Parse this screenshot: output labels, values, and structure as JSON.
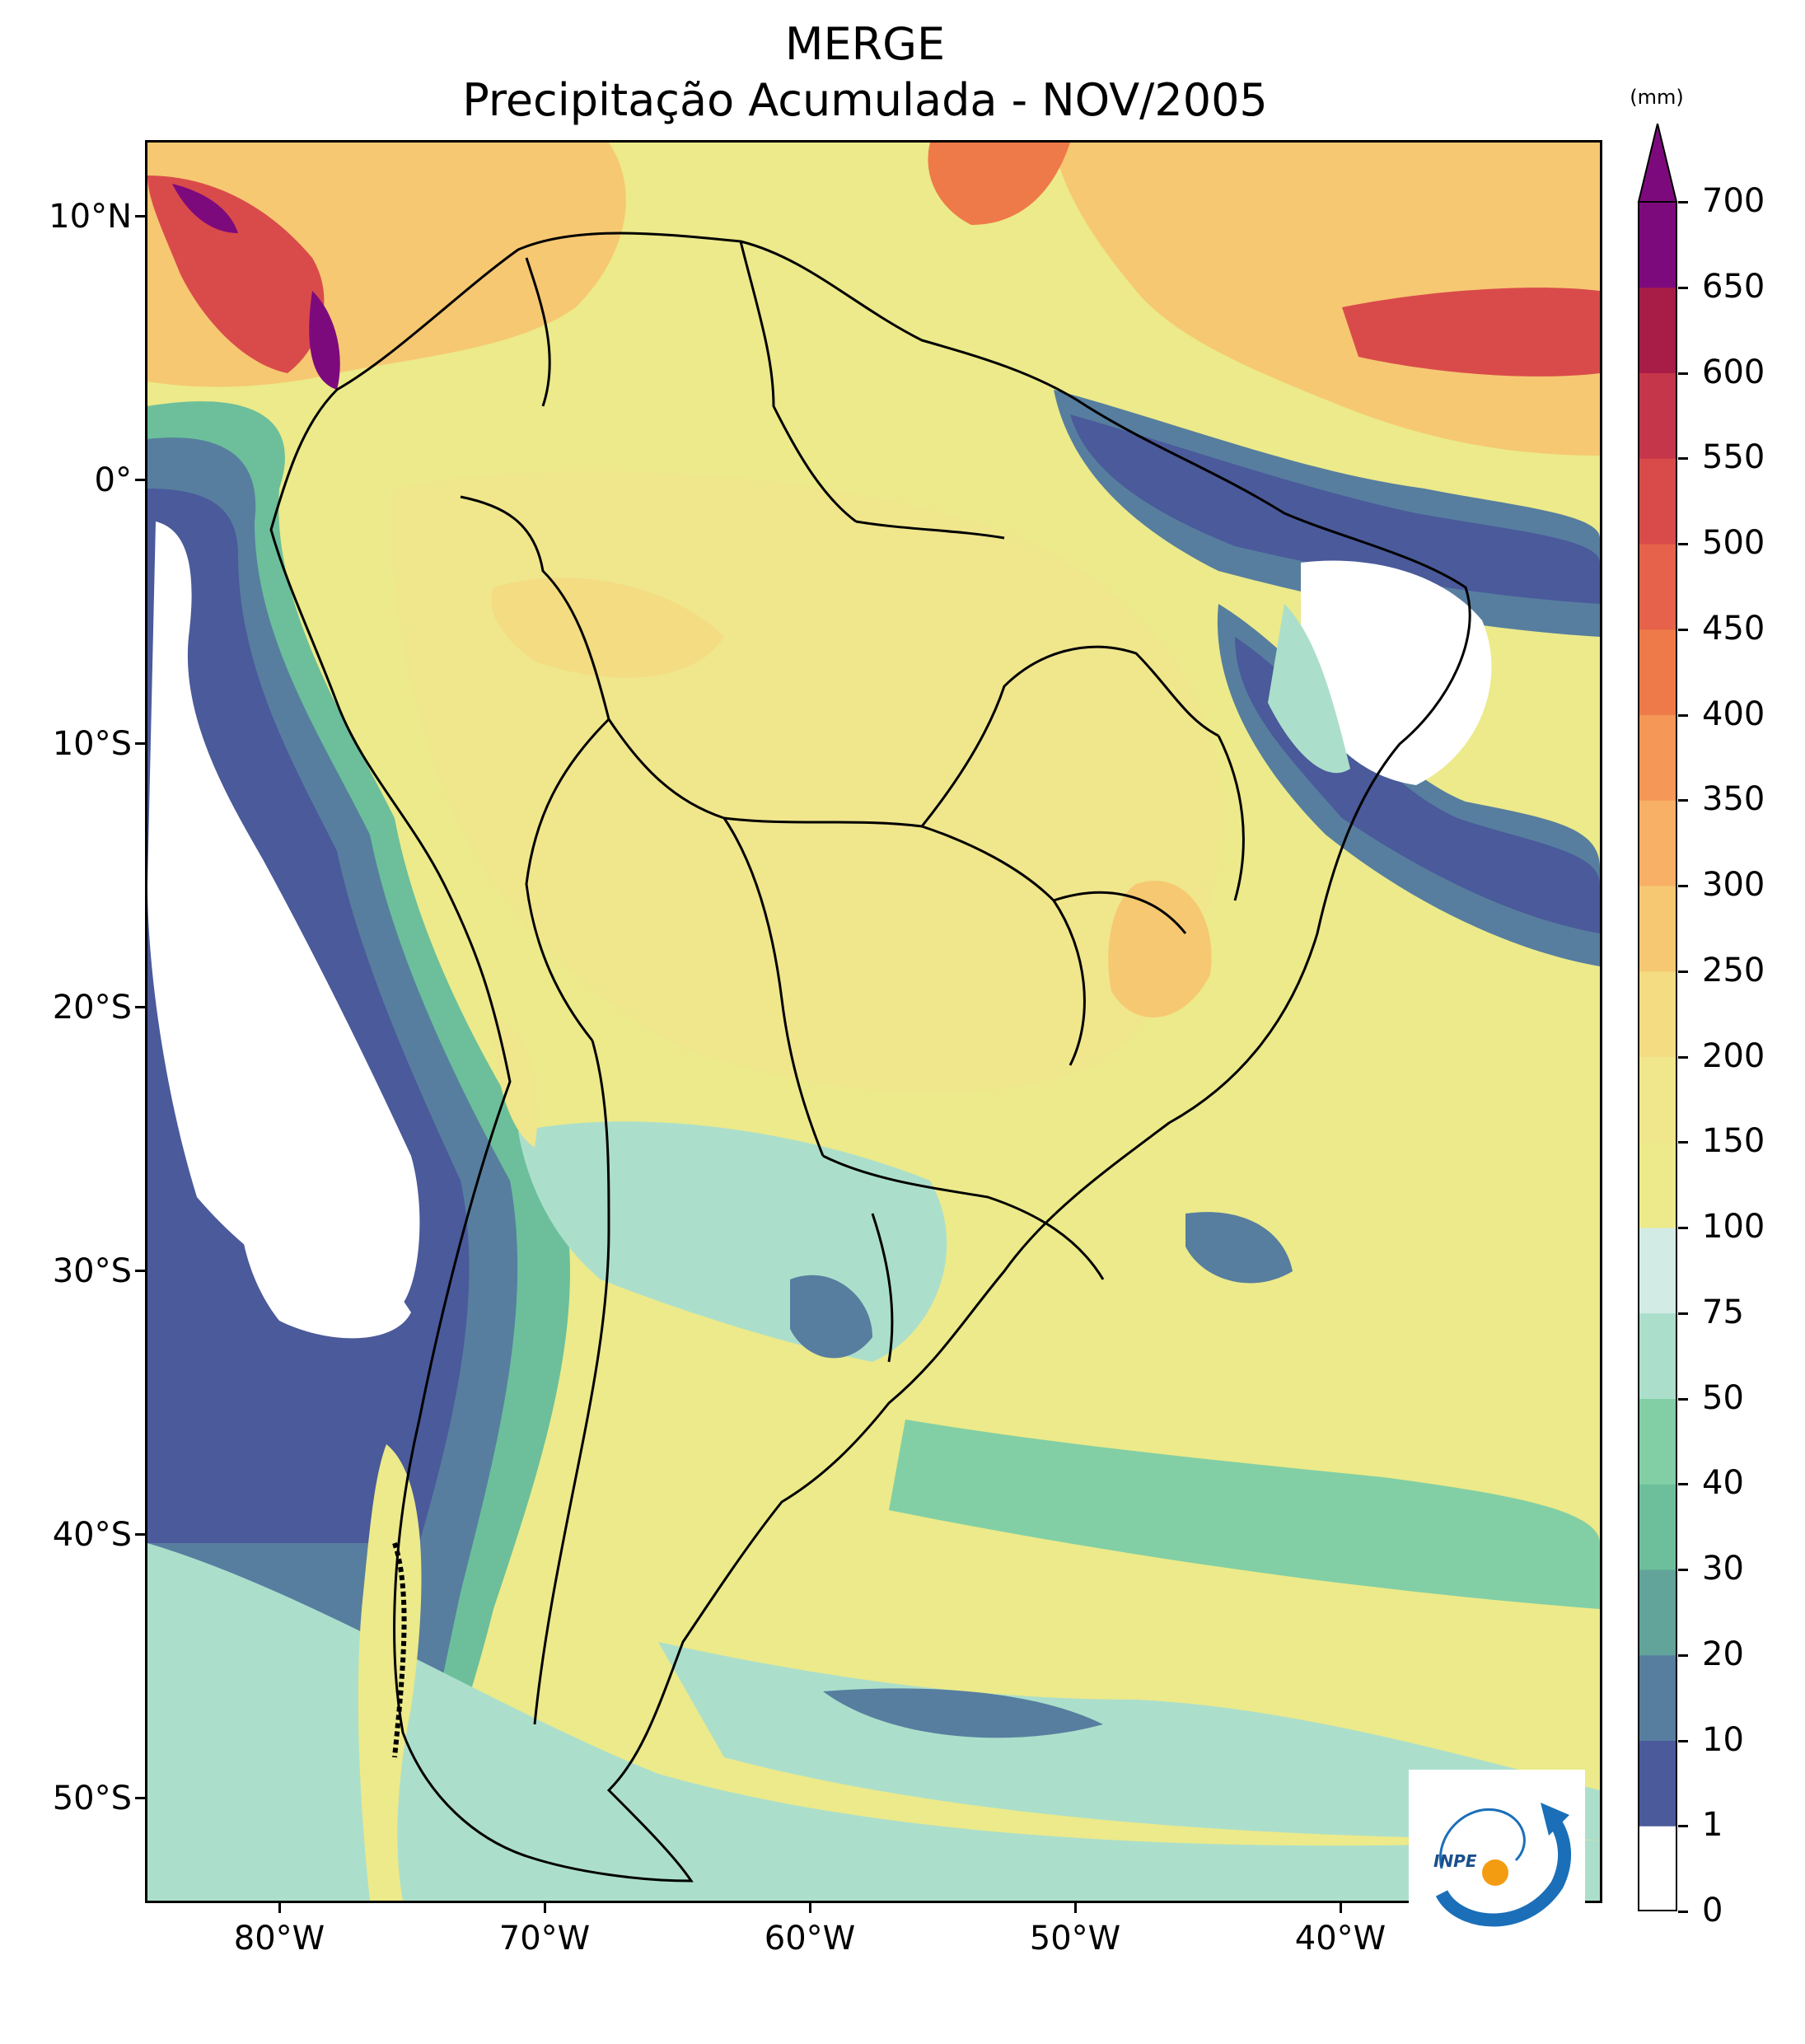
{
  "title": {
    "line1": "MERGE",
    "line2": "Precipitação Acumulada - NOV/2005"
  },
  "map": {
    "lat_labels": [
      "10°N",
      "0°",
      "10°S",
      "20°S",
      "30°S",
      "40°S",
      "50°S"
    ],
    "lon_labels": [
      "80°W",
      "70°W",
      "60°W",
      "50°W",
      "40°W"
    ],
    "lon_range": [
      -85,
      -30
    ],
    "lat_range": [
      -56,
      12.5
    ]
  },
  "colorbar": {
    "unit": "(mm)",
    "levels": [
      "0",
      "1",
      "10",
      "20",
      "30",
      "40",
      "50",
      "75",
      "100",
      "150",
      "200",
      "250",
      "300",
      "350",
      "400",
      "450",
      "500",
      "550",
      "600",
      "650",
      "700"
    ],
    "colors": [
      "#ffffff",
      "#4a5a9a",
      "#577e9f",
      "#62a39a",
      "#6cbf9a",
      "#82cfa5",
      "#acdfcb",
      "#d2ebe5",
      "#ecea8a",
      "#f0e68c",
      "#f3dc82",
      "#f6c872",
      "#f7b066",
      "#f59757",
      "#ef7a49",
      "#e6624a",
      "#d94b4a",
      "#c5364a",
      "#a81d47",
      "#7d0a7d"
    ],
    "extend_color": "#7d0a7d"
  },
  "logo": {
    "text": "INPE",
    "icon": "inpe-logo"
  }
}
